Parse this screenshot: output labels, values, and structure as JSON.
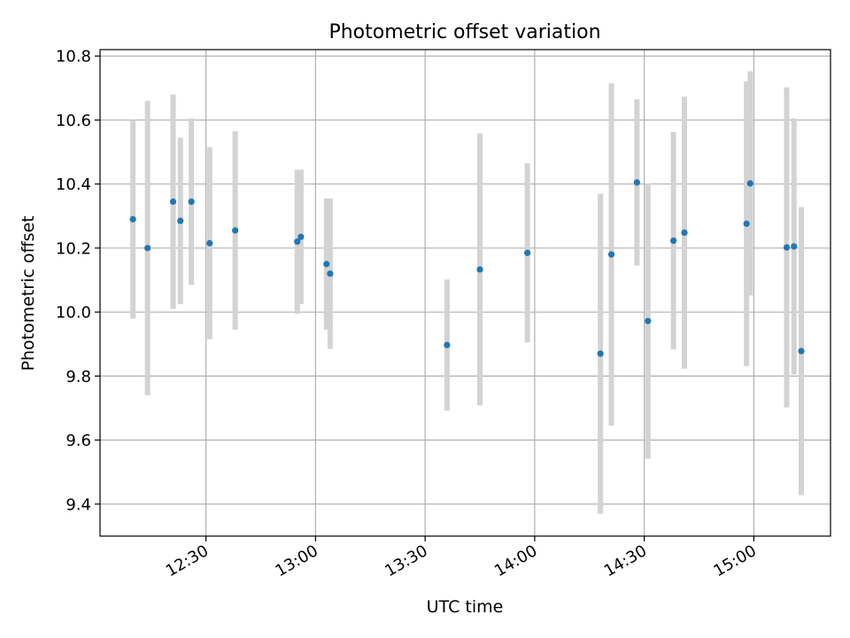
{
  "chart_data": {
    "type": "scatter",
    "title": "Photometric offset variation",
    "xlabel": "UTC time",
    "ylabel": "Photometric offset",
    "x_unit": "UTC time (HH:MM)",
    "xlim": [
      "12:01",
      "15:21"
    ],
    "ylim": [
      9.3,
      10.82
    ],
    "grid": true,
    "x_ticks": [
      "12:30",
      "13:00",
      "13:30",
      "14:00",
      "14:30",
      "15:00"
    ],
    "y_ticks": [
      9.4,
      9.6,
      9.8,
      10.0,
      10.2,
      10.4,
      10.6,
      10.8
    ],
    "y_tick_labels": [
      "9.4",
      "9.6",
      "9.8",
      "10.0",
      "10.2",
      "10.4",
      "10.6",
      "10.8"
    ],
    "marker_color": "#1f77b4",
    "errorbar_color": "#d3d3d3",
    "points": [
      {
        "x": "12:10",
        "y": 10.29,
        "err": 0.31
      },
      {
        "x": "12:14",
        "y": 10.2,
        "err": 0.46
      },
      {
        "x": "12:21",
        "y": 10.345,
        "err": 0.335
      },
      {
        "x": "12:23",
        "y": 10.285,
        "err": 0.26
      },
      {
        "x": "12:26",
        "y": 10.345,
        "err": 0.26
      },
      {
        "x": "12:31",
        "y": 10.215,
        "err": 0.3
      },
      {
        "x": "12:38",
        "y": 10.255,
        "err": 0.31
      },
      {
        "x": "12:55",
        "y": 10.22,
        "err": 0.225
      },
      {
        "x": "12:56",
        "y": 10.235,
        "err": 0.21
      },
      {
        "x": "13:03",
        "y": 10.15,
        "err": 0.205
      },
      {
        "x": "13:04",
        "y": 10.12,
        "err": 0.235
      },
      {
        "x": "13:36",
        "y": 9.897,
        "err": 0.205
      },
      {
        "x": "13:45",
        "y": 10.133,
        "err": 0.425
      },
      {
        "x": "13:58",
        "y": 10.185,
        "err": 0.28
      },
      {
        "x": "14:18",
        "y": 9.87,
        "err": 0.5
      },
      {
        "x": "14:21",
        "y": 10.18,
        "err": 0.535
      },
      {
        "x": "14:28",
        "y": 10.405,
        "err": 0.26
      },
      {
        "x": "14:31",
        "y": 9.972,
        "err": 0.43
      },
      {
        "x": "14:38",
        "y": 10.223,
        "err": 0.34
      },
      {
        "x": "14:41",
        "y": 10.248,
        "err": 0.425
      },
      {
        "x": "14:58",
        "y": 10.276,
        "err": 0.445
      },
      {
        "x": "14:59",
        "y": 10.402,
        "err": 0.35
      },
      {
        "x": "15:09",
        "y": 10.202,
        "err": 0.5
      },
      {
        "x": "15:11",
        "y": 10.205,
        "err": 0.4
      },
      {
        "x": "15:13",
        "y": 9.878,
        "err": 0.45
      }
    ]
  }
}
